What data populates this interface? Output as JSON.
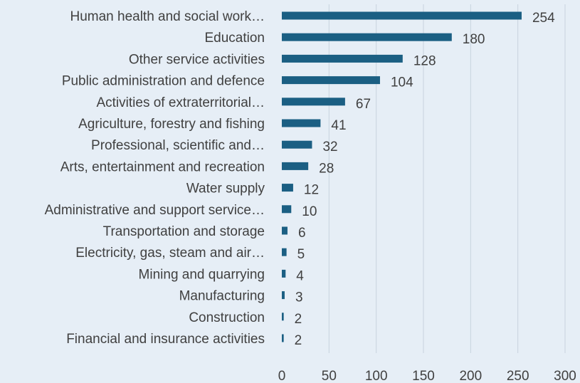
{
  "chart_data": {
    "type": "bar",
    "orientation": "horizontal",
    "title": "",
    "xlabel": "",
    "ylabel": "",
    "categories": [
      "Human health and social work…",
      "Education",
      "Other service activities",
      "Public administration and defence",
      "Activities of extraterritorial…",
      "Agriculture, forestry and fishing",
      "Professional, scientific and…",
      "Arts, entertainment and recreation",
      "Water supply",
      "Administrative and support service…",
      "Transportation and storage",
      "Electricity, gas, steam and air…",
      "Mining and quarrying",
      "Manufacturing",
      "Construction",
      "Financial and insurance activities"
    ],
    "values": [
      254,
      180,
      128,
      104,
      67,
      41,
      32,
      28,
      12,
      10,
      6,
      5,
      4,
      3,
      2,
      2
    ],
    "xlim": [
      0,
      300
    ],
    "xticks": [
      0,
      50,
      100,
      150,
      200,
      250,
      300
    ],
    "grid": true,
    "data_labels": true,
    "bar_color": "#1b5f83",
    "background": "#e6eef6"
  }
}
